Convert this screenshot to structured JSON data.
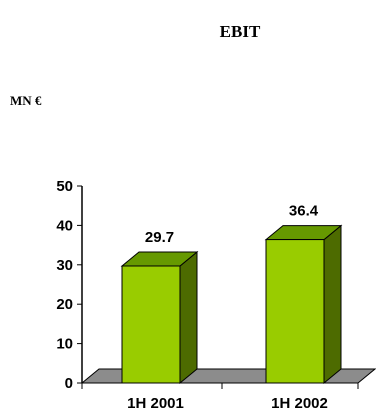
{
  "chart_data": {
    "type": "bar",
    "title": "EBIT",
    "ylabel": "MN €",
    "xlabel": "",
    "categories": [
      "1H 2001",
      "1H 2002"
    ],
    "values": [
      29.7,
      36.4
    ],
    "data_labels": [
      "29.7",
      "36.4"
    ],
    "ylim": [
      0,
      50
    ],
    "yticks": [
      0,
      10,
      20,
      30,
      40,
      50
    ],
    "ytick_labels": [
      "0",
      "10",
      "20",
      "30",
      "40",
      "50"
    ],
    "grid": false,
    "legend": "none",
    "style": "3d",
    "colors": {
      "bar_front": "#99cc00",
      "bar_top": "#669900",
      "bar_side": "#4d6b00",
      "floor": "#8c8c8c"
    }
  }
}
